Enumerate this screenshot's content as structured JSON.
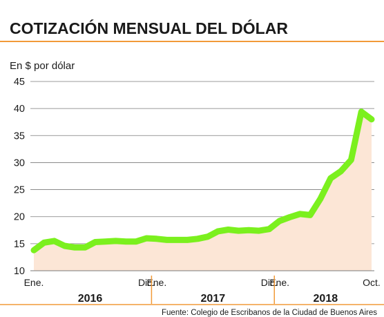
{
  "chart_data": {
    "type": "area",
    "title": "COTIZACIÓN MENSUAL DEL DÓLAR",
    "ylabel": "En $ por dólar",
    "source": "Fuente: Colegio de Escribanos de la Ciudad de Buenos Aires",
    "yticks": [
      10,
      15,
      20,
      25,
      30,
      35,
      40,
      45
    ],
    "ylim": [
      10,
      45
    ],
    "grid": true,
    "month_labels": [
      {
        "index": 0,
        "label": "Ene."
      },
      {
        "index": 11,
        "label": "Dic."
      },
      {
        "index": 12,
        "label": "Ene."
      },
      {
        "index": 23,
        "label": "Dic."
      },
      {
        "index": 24,
        "label": "Ene."
      },
      {
        "index": 33,
        "label": "Oct."
      }
    ],
    "years": [
      {
        "label": "2016",
        "from": 0,
        "to": 11
      },
      {
        "label": "2017",
        "from": 12,
        "to": 23
      },
      {
        "label": "2018",
        "from": 24,
        "to": 33
      }
    ],
    "series": [
      {
        "values": [
          13.8,
          15.2,
          15.5,
          14.6,
          14.3,
          14.3,
          15.3,
          15.4,
          15.5,
          15.4,
          15.4,
          16.0,
          15.9,
          15.7,
          15.7,
          15.7,
          15.9,
          16.3,
          17.3,
          17.6,
          17.4,
          17.5,
          17.4,
          17.7,
          19.2,
          19.9,
          20.5,
          20.3,
          23.3,
          27.1,
          28.4,
          30.5,
          39.4,
          38.0
        ]
      }
    ],
    "colors": {
      "line": "#7bf01e",
      "fill": "#fce6d6",
      "grid": "#7a7a7a",
      "accent": "#f29a38",
      "text": "#1a1a1a"
    }
  }
}
